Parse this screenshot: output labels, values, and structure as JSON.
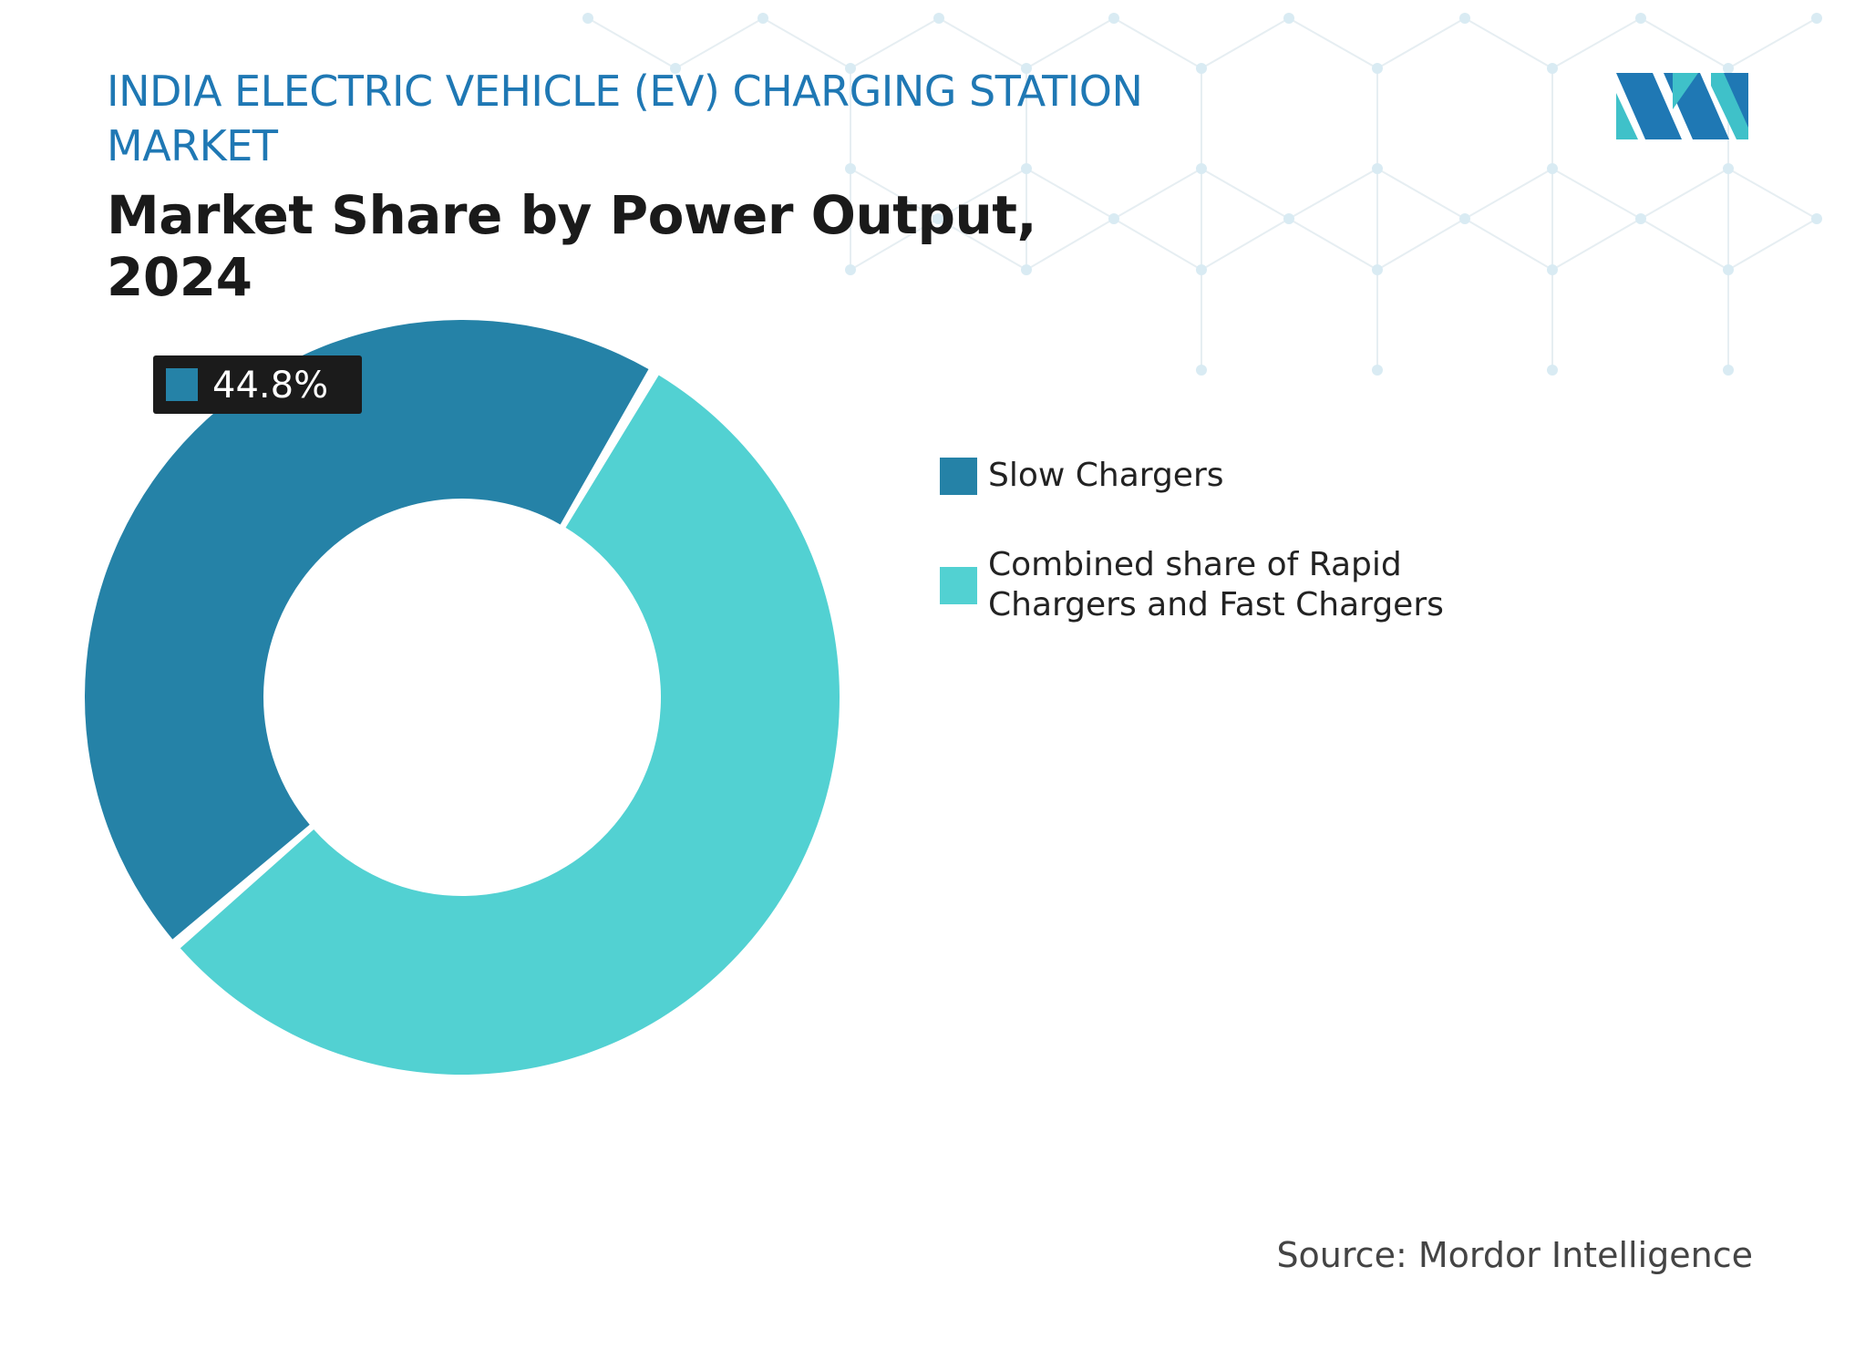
{
  "header": {
    "market_title": "INDIA ELECTRIC VEHICLE (EV) CHARGING STATION MARKET",
    "chart_title": "Market Share by Power Output, 2024"
  },
  "logo": {
    "icon": "mordor-intelligence-logo",
    "colors": [
      "#1f78b4",
      "#3fc1c9"
    ]
  },
  "chart_data": {
    "type": "pie",
    "style": "donut",
    "title": "Market Share by Power Output, 2024",
    "categories": [
      "Slow Chargers",
      "Combined share of Rapid Chargers and Fast Chargers"
    ],
    "values": [
      44.8,
      55.2
    ],
    "unit": "%",
    "colors": [
      "#2582a7",
      "#52d1d2"
    ],
    "data_labels": [
      {
        "category": "Slow Chargers",
        "text": "44.8%"
      }
    ],
    "legend": {
      "position": "right",
      "entries": [
        "Slow Chargers",
        "Combined share of Rapid Chargers and Fast Chargers"
      ]
    }
  },
  "footer": {
    "source": "Source: Mordor Intelligence"
  }
}
